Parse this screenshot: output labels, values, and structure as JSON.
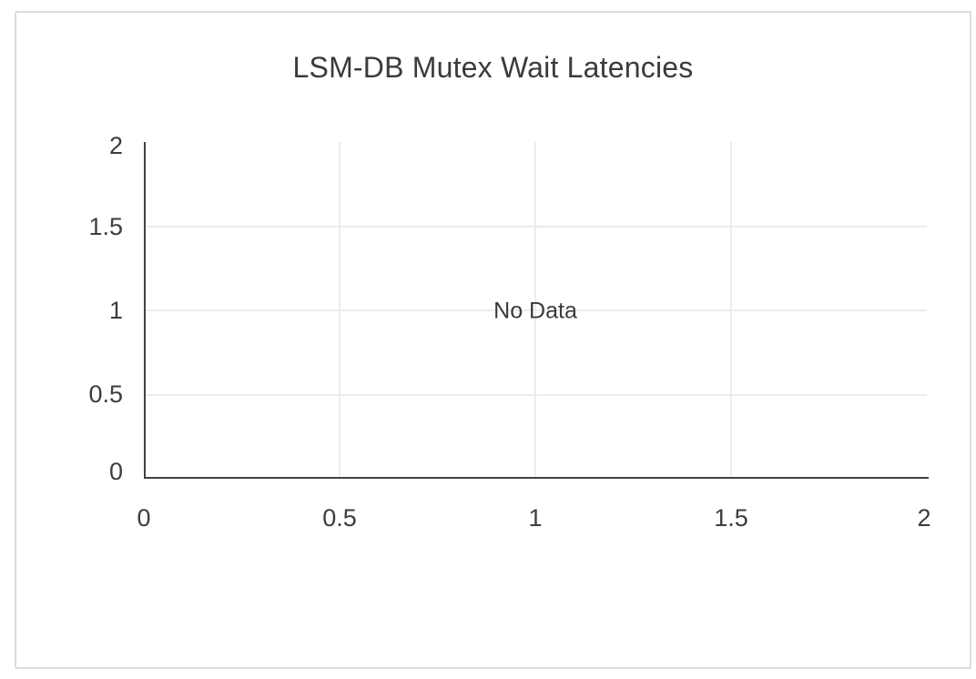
{
  "chart": {
    "title": "LSM-DB Mutex Wait Latencies",
    "no_data_label": "No Data",
    "x_tick_labels": [
      "0",
      "0.5",
      "1",
      "1.5",
      "2"
    ],
    "y_tick_labels": [
      "2",
      "1.5",
      "1",
      "0.5",
      "0"
    ]
  },
  "colors": {
    "background": "#ffffff",
    "card_border": "#dcdcdc",
    "axis_line": "#424242",
    "gridline": "#ececec",
    "title_text": "#3b3b3b",
    "tick_text": "#3d3d3d",
    "no_data_text": "#3a3a3a"
  },
  "chart_data": {
    "type": "line",
    "title": "LSM-DB Mutex Wait Latencies",
    "series": [],
    "xlim": [
      0,
      2
    ],
    "ylim": [
      0,
      2
    ],
    "x_ticks": [
      0,
      0.5,
      1,
      1.5,
      2
    ],
    "y_ticks": [
      0,
      0.5,
      1,
      1.5,
      2
    ],
    "grid": true,
    "legend": false,
    "annotations": [
      "No Data"
    ]
  }
}
